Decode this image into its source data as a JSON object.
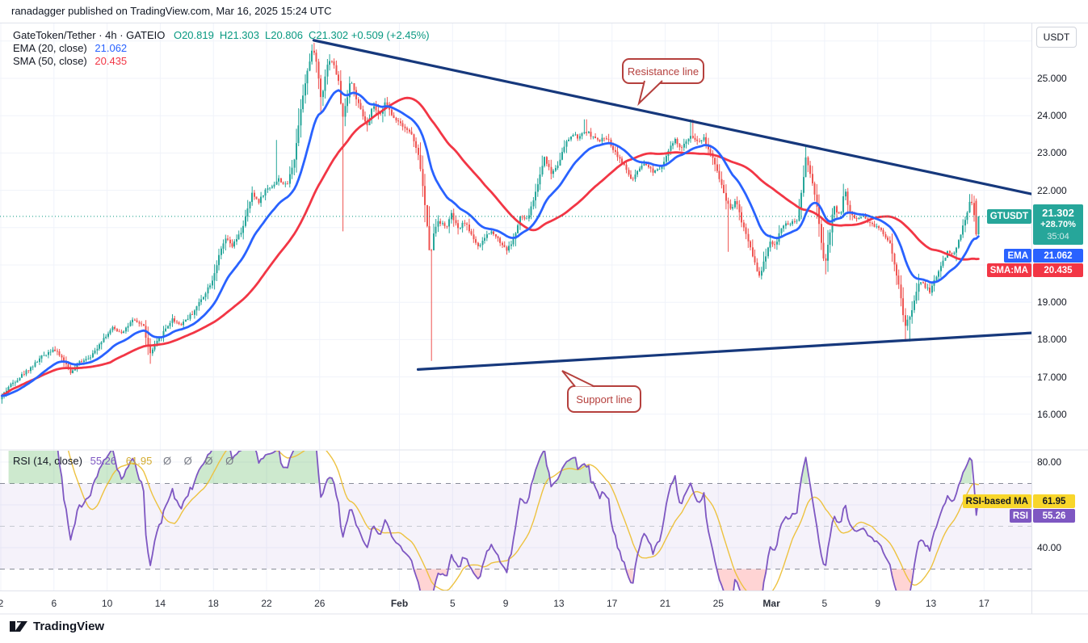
{
  "attribution": "ranadagger published on TradingView.com, Mar 16, 2025 15:24 UTC",
  "legend": {
    "title": "GateToken/Tether · 4h · GATEIO",
    "ohlc": [
      {
        "k": "O",
        "v": "20.819"
      },
      {
        "k": "H",
        "v": "21.303"
      },
      {
        "k": "L",
        "v": "20.806"
      },
      {
        "k": "C",
        "v": "21.302"
      }
    ],
    "change": "+0.509 (+2.45%)",
    "ema": {
      "label": "EMA (20, close)",
      "value": "21.062"
    },
    "sma": {
      "label": "SMA (50, close)",
      "value": "20.435"
    }
  },
  "rsi_legend": {
    "label": "RSI (14, close)",
    "value": "55.26",
    "ma_value": "61.95",
    "empty": "Ø Ø Ø Ø"
  },
  "callouts": {
    "resistance": "Resistance line",
    "support": "Support line"
  },
  "axis": {
    "currency": "USDT",
    "price_ticks": [
      {
        "v": 25,
        "label": "25.000"
      },
      {
        "v": 24,
        "label": "24.000"
      },
      {
        "v": 23,
        "label": "23.000"
      },
      {
        "v": 22,
        "label": "22.000"
      },
      {
        "v": 19,
        "label": "19.000"
      },
      {
        "v": 18,
        "label": "18.000"
      },
      {
        "v": 17,
        "label": "17.000"
      },
      {
        "v": 16,
        "label": "16.000"
      }
    ],
    "grid_prices": [
      26,
      25,
      24,
      23,
      22,
      21,
      20,
      19,
      18,
      17,
      16
    ],
    "rsi_ticks": [
      {
        "v": 80,
        "label": "80.00"
      },
      {
        "v": 40,
        "label": "40.00"
      }
    ],
    "time_ticks": [
      {
        "d": 0,
        "label": "2"
      },
      {
        "d": 4,
        "label": "6"
      },
      {
        "d": 8,
        "label": "10"
      },
      {
        "d": 12,
        "label": "14"
      },
      {
        "d": 16,
        "label": "18"
      },
      {
        "d": 20,
        "label": "22"
      },
      {
        "d": 24,
        "label": "26"
      },
      {
        "d": 30,
        "label": "Feb",
        "month": true
      },
      {
        "d": 34,
        "label": "5"
      },
      {
        "d": 38,
        "label": "9"
      },
      {
        "d": 42,
        "label": "13"
      },
      {
        "d": 46,
        "label": "17"
      },
      {
        "d": 50,
        "label": "21"
      },
      {
        "d": 54,
        "label": "25"
      },
      {
        "d": 58,
        "label": "Mar",
        "month": true
      },
      {
        "d": 62,
        "label": "5"
      },
      {
        "d": 66,
        "label": "9"
      },
      {
        "d": 70,
        "label": "13"
      },
      {
        "d": 74,
        "label": "17"
      }
    ],
    "badges": {
      "price": {
        "label": "GTUSDT",
        "value": "21.302",
        "change": "+28.70%",
        "countdown": "35:04"
      },
      "ema": {
        "label": "EMA",
        "value": "21.062"
      },
      "sma": {
        "label": "SMA:MA",
        "value": "20.435"
      },
      "rsi_ma": {
        "label": "RSI-based MA",
        "value": "61.95"
      },
      "rsi": {
        "label": "RSI",
        "value": "55.26"
      }
    }
  },
  "footer": {
    "brand": "TradingView"
  },
  "colors": {
    "candle_up": "#26a69a",
    "candle_down": "#ef5350",
    "ema": "#2962ff",
    "sma": "#f23645",
    "rsi": "#7e57c2",
    "rsi_ma": "#edc240",
    "trendline": "#16387c",
    "callout": "#b5403d",
    "ohlc_text": "#089981",
    "grid": "#f0f3fa",
    "band_fill": "rgba(126,87,194,0.08)",
    "overbought_fill": "rgba(76,175,80,0.28)",
    "oversold_fill": "rgba(255,82,82,0.25)",
    "current_price_line": "#089981"
  },
  "chart_data": {
    "type": "candlestick",
    "symbol": "GTUSDT",
    "exchange": "GATEIO",
    "interval": "4h",
    "title": "GateToken/Tether · 4h · GATEIO",
    "price_range_visible": [
      15.04,
      26.49
    ],
    "rsi_range_visible": [
      20,
      85.7
    ],
    "days_visible_from_jan2": [
      0,
      77.6
    ],
    "current_bar": {
      "open": 20.819,
      "high": 21.303,
      "low": 20.806,
      "close": 21.302,
      "change": 0.509,
      "change_pct": 2.45,
      "ema20": 21.062,
      "sma50": 20.435,
      "rsi14": 55.26,
      "rsi_ma14": 61.95
    },
    "trendlines": [
      {
        "name": "resistance",
        "from_d": 23.55,
        "from_p": 26.02,
        "to_d": 77.6,
        "to_p": 21.9
      },
      {
        "name": "support",
        "from_d": 31.4,
        "from_p": 17.2,
        "to_d": 77.6,
        "to_p": 18.18
      }
    ],
    "rsi_band": [
      30,
      70
    ],
    "rsi_dashed_levels": [
      70,
      50,
      30
    ],
    "close_waypoints_day_price": [
      [
        0,
        16.4
      ],
      [
        0.7,
        16.75
      ],
      [
        1.5,
        17.0
      ],
      [
        2.5,
        17.3
      ],
      [
        3.2,
        17.55
      ],
      [
        4,
        17.75
      ],
      [
        4.6,
        17.55
      ],
      [
        5.4,
        17.1
      ],
      [
        6,
        17.4
      ],
      [
        7,
        17.6
      ],
      [
        7.6,
        17.95
      ],
      [
        8.5,
        18.3
      ],
      [
        9.2,
        18.2
      ],
      [
        10,
        18.5
      ],
      [
        10.8,
        18.4
      ],
      [
        11.3,
        17.6
      ],
      [
        11.7,
        17.85
      ],
      [
        12.5,
        18.3
      ],
      [
        13,
        18.55
      ],
      [
        13.6,
        18.4
      ],
      [
        14.5,
        18.7
      ],
      [
        15.3,
        19.15
      ],
      [
        16,
        19.6
      ],
      [
        16.6,
        20.35
      ],
      [
        17,
        20.7
      ],
      [
        17.5,
        20.5
      ],
      [
        18.2,
        20.9
      ],
      [
        19,
        21.9
      ],
      [
        19.5,
        21.7
      ],
      [
        20,
        22.0
      ],
      [
        20.6,
        22.15
      ],
      [
        21,
        22.3
      ],
      [
        21.6,
        22.1
      ],
      [
        22.2,
        22.9
      ],
      [
        22.7,
        24.3
      ],
      [
        23.1,
        25.1
      ],
      [
        23.6,
        25.85
      ],
      [
        23.9,
        25.3
      ],
      [
        24.2,
        24.4
      ],
      [
        24.6,
        25.3
      ],
      [
        24.9,
        25.55
      ],
      [
        25.2,
        25.3
      ],
      [
        25.5,
        24.9
      ],
      [
        25.8,
        23.9
      ],
      [
        26.1,
        24.4
      ],
      [
        26.4,
        25.0
      ],
      [
        26.8,
        24.5
      ],
      [
        27.3,
        24.0
      ],
      [
        27.7,
        23.7
      ],
      [
        28.1,
        24.3
      ],
      [
        28.6,
        23.95
      ],
      [
        29,
        24.4
      ],
      [
        29.5,
        24.0
      ],
      [
        30.2,
        23.8
      ],
      [
        31,
        23.5
      ],
      [
        31.6,
        22.8
      ],
      [
        32,
        21.6
      ],
      [
        32.4,
        20.2
      ],
      [
        32.7,
        20.9
      ],
      [
        33,
        21.2
      ],
      [
        33.6,
        21.0
      ],
      [
        34,
        21.35
      ],
      [
        34.5,
        20.95
      ],
      [
        35,
        21.15
      ],
      [
        35.6,
        20.75
      ],
      [
        36.1,
        20.45
      ],
      [
        36.6,
        20.8
      ],
      [
        37.1,
        20.9
      ],
      [
        37.7,
        20.6
      ],
      [
        38.2,
        20.4
      ],
      [
        38.7,
        20.7
      ],
      [
        39.2,
        21.3
      ],
      [
        39.7,
        21.2
      ],
      [
        40.3,
        21.9
      ],
      [
        41,
        22.9
      ],
      [
        41.5,
        22.45
      ],
      [
        42,
        22.7
      ],
      [
        42.6,
        23.25
      ],
      [
        43.1,
        23.5
      ],
      [
        43.6,
        23.4
      ],
      [
        44.1,
        23.6
      ],
      [
        44.6,
        23.45
      ],
      [
        45.1,
        23.3
      ],
      [
        45.6,
        23.45
      ],
      [
        46.2,
        23.1
      ],
      [
        47,
        22.65
      ],
      [
        47.6,
        22.25
      ],
      [
        48.1,
        22.55
      ],
      [
        48.6,
        22.7
      ],
      [
        49.2,
        22.5
      ],
      [
        49.8,
        22.65
      ],
      [
        50.4,
        23.1
      ],
      [
        50.8,
        23.35
      ],
      [
        51.3,
        23.1
      ],
      [
        52,
        23.5
      ],
      [
        52.5,
        23.3
      ],
      [
        53,
        23.4
      ],
      [
        53.6,
        22.9
      ],
      [
        54.2,
        22.3
      ],
      [
        54.7,
        21.7
      ],
      [
        55.1,
        21.5
      ],
      [
        55.4,
        21.8
      ],
      [
        55.8,
        21.2
      ],
      [
        56.3,
        20.7
      ],
      [
        56.8,
        20.1
      ],
      [
        57.2,
        19.65
      ],
      [
        57.6,
        20.2
      ],
      [
        58,
        20.65
      ],
      [
        58.4,
        20.5
      ],
      [
        58.8,
        21.0
      ],
      [
        59.3,
        21.1
      ],
      [
        60,
        21.15
      ],
      [
        60.4,
        22.1
      ],
      [
        60.7,
        22.95
      ],
      [
        61,
        22.4
      ],
      [
        61.4,
        21.8
      ],
      [
        61.8,
        20.7
      ],
      [
        62.1,
        19.95
      ],
      [
        62.5,
        20.9
      ],
      [
        62.8,
        21.65
      ],
      [
        63.1,
        21.3
      ],
      [
        63.4,
        21.5
      ],
      [
        63.6,
        22.1
      ],
      [
        63.9,
        21.5
      ],
      [
        64.3,
        21.25
      ],
      [
        65,
        21.3
      ],
      [
        65.6,
        21.1
      ],
      [
        66.3,
        20.95
      ],
      [
        67,
        20.6
      ],
      [
        67.4,
        19.9
      ],
      [
        67.7,
        19.45
      ],
      [
        68.1,
        18.35
      ],
      [
        68.5,
        18.6
      ],
      [
        68.8,
        19.0
      ],
      [
        69.2,
        19.55
      ],
      [
        69.6,
        19.45
      ],
      [
        70,
        19.3
      ],
      [
        70.5,
        19.7
      ],
      [
        71,
        20.1
      ],
      [
        71.4,
        20.4
      ],
      [
        71.8,
        20.25
      ],
      [
        72.2,
        20.7
      ],
      [
        72.6,
        21.15
      ],
      [
        73.0,
        21.65
      ],
      [
        73.25,
        21.72
      ],
      [
        73.42,
        20.85
      ],
      [
        73.58,
        21.302
      ]
    ],
    "spike_lows_day_price": [
      [
        11.3,
        17.35
      ],
      [
        25.7,
        20.9
      ],
      [
        32.4,
        17.43
      ],
      [
        54.7,
        20.35
      ],
      [
        62.1,
        19.75
      ],
      [
        68.1,
        17.97
      ],
      [
        68.4,
        17.95
      ]
    ],
    "spike_highs_day_price": [
      [
        20.8,
        23.35
      ],
      [
        23.6,
        25.95
      ],
      [
        44.0,
        23.9
      ],
      [
        52.0,
        23.9
      ],
      [
        60.6,
        23.2
      ],
      [
        73.0,
        21.9
      ]
    ]
  }
}
